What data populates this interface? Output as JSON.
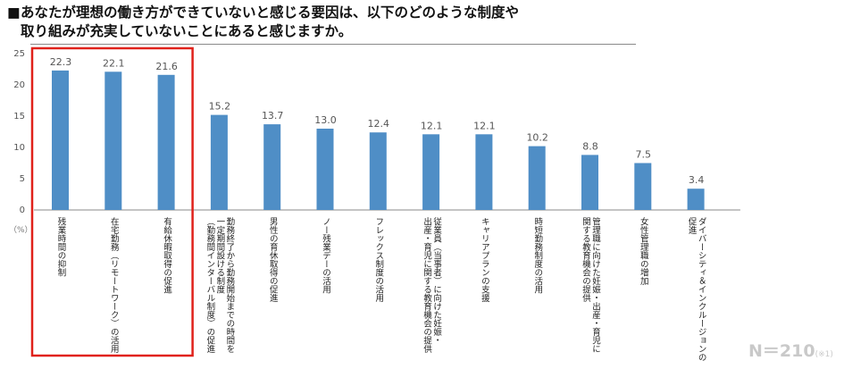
{
  "title": {
    "marker": "■",
    "line1": "あなたが理想の働き方ができていないと感じる要因は、以下のどのような制度や",
    "line2": "取り組みが充実していないことにあると感じますか。"
  },
  "colors": {
    "bar": "#4f8ec6",
    "highlight": "#e0221b",
    "axis": "#888888",
    "label": "#555555",
    "value": "#555555"
  },
  "unit_label": "（%）",
  "footnote": {
    "n": "N＝210",
    "sub": "(※1)"
  },
  "highlight_indices": [
    0,
    1,
    2
  ],
  "chart_data": {
    "type": "bar",
    "title": "",
    "xlabel": "",
    "ylabel": "（%）",
    "ylim": [
      0,
      25
    ],
    "yticks": [
      0,
      5,
      10,
      15,
      20,
      25
    ],
    "categories": [
      "残業時間の抑制",
      "在宅勤務（リモートワーク）の活用",
      "有給休暇取得の促進",
      "勤務終了から勤務開始までの時間を一定期間設ける制度（勤務間インターバル制度）の促進",
      "男性の育休取得の促進",
      "ノー残業デーの活用",
      "フレックス制度の活用",
      "従業員（当事者）に向けた妊娠・出産・育児に関する教育機会の提供",
      "キャリアプランの支援",
      "時短勤務制度の活用",
      "管理職に向けた妊娠・出産・育児に関する教育機会の提供",
      "女性管理職の増加",
      "ダイバーシティ＆インクルージョンの促進"
    ],
    "label_columns": [
      [
        "残業時間の抑制"
      ],
      [
        "在宅勤務（リモートワーク）の活用"
      ],
      [
        "有給休暇取得の促進"
      ],
      [
        "勤務終了から勤務開始までの時間を",
        "一定期間設ける制度",
        "（勤務間インターバル制度）の促進"
      ],
      [
        "男性の育休取得の促進"
      ],
      [
        "ノー残業デーの活用"
      ],
      [
        "フレックス制度の活用"
      ],
      [
        "従業員（当事者）に向けた妊娠・",
        "出産・育児に関する教育機会の提供"
      ],
      [
        "キャリアプランの支援"
      ],
      [
        "時短勤務制度の活用"
      ],
      [
        "管理職に向けた妊娠・出産・育児に",
        "関する教育機会の提供"
      ],
      [
        "女性管理職の増加"
      ],
      [
        "ダイバーシティ＆インクルージョンの",
        "促進"
      ]
    ],
    "values": [
      22.3,
      22.1,
      21.6,
      15.2,
      13.7,
      13.0,
      12.4,
      12.1,
      12.1,
      10.2,
      8.8,
      7.5,
      3.4
    ]
  }
}
